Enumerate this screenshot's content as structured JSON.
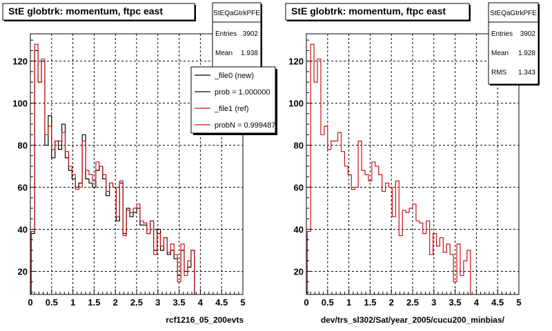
{
  "footer_text": "",
  "colors": {
    "new": "#000000",
    "ref": "#cc1111",
    "grid": "#000000",
    "frame": "#000000"
  },
  "chart_data": [
    {
      "type": "step-histogram",
      "title": "StE globtrk: momentum, ftpc east",
      "xlabel": "rcf1216_05_200evts",
      "ylabel": "",
      "xlim": [
        0,
        5
      ],
      "ylim": [
        9,
        133
      ],
      "xticks": [
        "0",
        "0.5",
        "1",
        "1.5",
        "2",
        "2.5",
        "3",
        "3.5",
        "4",
        "4.5",
        "5"
      ],
      "yticks": [
        "20",
        "40",
        "60",
        "80",
        "100",
        "120"
      ],
      "grid": true,
      "stats": {
        "title": "StEQaGtrkPFE",
        "rows": [
          {
            "label": "Entries",
            "value": "3902"
          },
          {
            "label": "Mean",
            "value": "1.938"
          }
        ]
      },
      "legend": {
        "placement": "top-right",
        "entries": [
          {
            "label": "_file0 (new)",
            "color": "#000000"
          },
          {
            "label": "prob = 1.000000",
            "color": "#000000"
          },
          {
            "label": "_file1 (ref)",
            "color": "#cc1111"
          },
          {
            "label": "probN = 0.999487",
            "color": "#cc1111"
          }
        ]
      },
      "bin_width": 0.08,
      "x_start": 0.02,
      "series": [
        {
          "name": "_file0 (new)",
          "color": "#000000",
          "values": [
            38,
            125,
            110,
            120,
            80,
            94,
            74,
            82,
            78,
            90,
            74,
            68,
            64,
            60,
            62,
            85,
            64,
            62,
            60,
            68,
            70,
            64,
            56,
            62,
            60,
            44,
            62,
            38,
            50,
            46,
            48,
            50,
            42,
            42,
            38,
            44,
            30,
            40,
            30,
            36,
            28,
            30,
            26,
            18,
            30,
            20,
            22,
            30
          ]
        },
        {
          "name": "_file1 (ref)",
          "color": "#cc1111",
          "values": [
            39,
            128,
            110,
            121,
            85,
            89,
            78,
            82,
            82,
            86,
            77,
            70,
            66,
            59,
            60,
            82,
            68,
            66,
            63,
            72,
            70,
            66,
            58,
            62,
            60,
            46,
            63,
            37,
            49,
            48,
            50,
            52,
            44,
            43,
            38,
            44,
            28,
            38,
            32,
            36,
            29,
            33,
            28,
            15,
            33,
            18,
            25,
            30
          ]
        }
      ]
    },
    {
      "type": "step-histogram",
      "title": "StE globtrk: momentum, ftpc east",
      "xlabel": "dev/trs_sl302/Sat/year_2005/cucu200_minbias/",
      "ylabel": "",
      "xlim": [
        0,
        5
      ],
      "ylim": [
        9,
        133
      ],
      "xticks": [
        "0",
        "0.5",
        "1",
        "1.5",
        "2",
        "2.5",
        "3",
        "3.5",
        "4",
        "4.5",
        "5"
      ],
      "yticks": [
        "20",
        "40",
        "60",
        "80",
        "100",
        "120"
      ],
      "grid": true,
      "stats": {
        "title": "StEQaGtrkPFE",
        "rows": [
          {
            "label": "Entries",
            "value": "3902"
          },
          {
            "label": "Mean",
            "value": "1.928"
          },
          {
            "label": "RMS",
            "value": "1.343"
          }
        ]
      },
      "legend": null,
      "bin_width": 0.08,
      "x_start": 0.02,
      "series": [
        {
          "name": "",
          "color": "#cc1111",
          "values": [
            39,
            128,
            110,
            121,
            85,
            89,
            78,
            82,
            82,
            86,
            77,
            70,
            66,
            59,
            60,
            82,
            68,
            66,
            63,
            72,
            70,
            66,
            58,
            62,
            60,
            46,
            63,
            37,
            49,
            48,
            50,
            52,
            44,
            43,
            38,
            44,
            28,
            38,
            32,
            36,
            29,
            33,
            28,
            15,
            33,
            18,
            25,
            30
          ]
        }
      ]
    }
  ]
}
